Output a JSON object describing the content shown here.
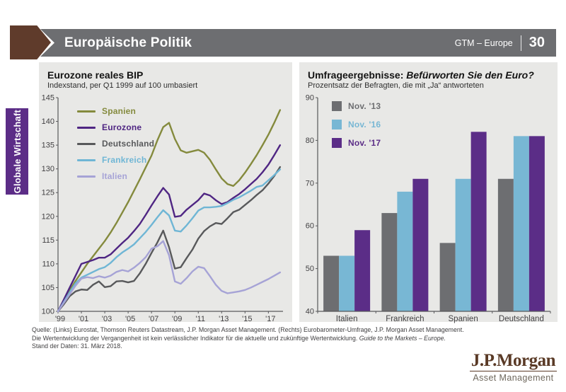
{
  "header": {
    "title": "Europäische Politik",
    "gtm_label": "GTM – Europe",
    "page_number": "30"
  },
  "sidebar": {
    "label": "Globale Wirtschaft",
    "color": "#5c2d87"
  },
  "right_chart": {
    "title_prefix": "Umfrageergebnisse: ",
    "title_italic": "Befürworten Sie den Euro?"
  },
  "chart_data": [
    {
      "type": "line",
      "title": "Eurozone reales BIP",
      "subtitle": "Indexstand, per Q1 1999 auf 100 umbasiert",
      "ylim": [
        100,
        145
      ],
      "ytick_step": 5,
      "xlim": [
        1999,
        2018.25
      ],
      "xticks": [
        1999,
        2001,
        2003,
        2005,
        2007,
        2009,
        2011,
        2013,
        2015,
        2017
      ],
      "xtick_labels": [
        "'99",
        "'01",
        "'03",
        "'05",
        "'07",
        "'09",
        "'11",
        "'13",
        "'15",
        "'17"
      ],
      "grid": false,
      "legend_position": "top-left",
      "x": [
        1999,
        1999.5,
        2000,
        2000.5,
        2001,
        2001.5,
        2002,
        2002.5,
        2003,
        2003.5,
        2004,
        2004.5,
        2005,
        2005.5,
        2006,
        2006.5,
        2007,
        2007.5,
        2008,
        2008.5,
        2009,
        2009.5,
        2010,
        2010.5,
        2011,
        2011.5,
        2012,
        2012.5,
        2013,
        2013.5,
        2014,
        2014.5,
        2015,
        2015.5,
        2016,
        2016.5,
        2017,
        2017.5,
        2018
      ],
      "series": [
        {
          "name": "Spanien",
          "color": "#848a3d",
          "values": [
            100,
            102.2,
            104.4,
            106.4,
            108.2,
            110,
            111.6,
            113.2,
            114.8,
            116.6,
            118.6,
            120.8,
            123,
            125.4,
            127.8,
            130.3,
            132.8,
            136,
            138.8,
            139.7,
            136.3,
            133.9,
            133.4,
            133.7,
            134,
            133.4,
            131.9,
            129.9,
            128,
            126.8,
            126.4,
            127.6,
            129.2,
            131,
            132.9,
            135,
            137.2,
            139.7,
            142.4
          ]
        },
        {
          "name": "Eurozone",
          "color": "#4f2683",
          "values": [
            100,
            102.5,
            105,
            107.5,
            110,
            110.4,
            110.8,
            111.3,
            111.3,
            112,
            113.2,
            114.4,
            115.5,
            116.9,
            118.4,
            120.3,
            122.3,
            124.2,
            126,
            124.6,
            119.9,
            120.1,
            121.4,
            122.4,
            123.4,
            124.8,
            124.4,
            123.4,
            122.6,
            123,
            123.9,
            124.7,
            125.7,
            126.8,
            127.9,
            129.3,
            130.9,
            132.9,
            135
          ]
        },
        {
          "name": "Deutschland",
          "color": "#58595b",
          "values": [
            100,
            101.5,
            103.2,
            104.2,
            104.6,
            104.5,
            105.6,
            106.3,
            105.1,
            105.3,
            106.3,
            106.4,
            106.1,
            106.4,
            108,
            110,
            112.3,
            114.5,
            117,
            113.5,
            109,
            109.3,
            111.2,
            113,
            115.3,
            116.9,
            117.9,
            118.6,
            118.4,
            119.6,
            120.9,
            121.4,
            122.4,
            123.4,
            124.5,
            125.5,
            126.9,
            128.5,
            130.4
          ]
        },
        {
          "name": "Frankreich",
          "color": "#6fb6d5",
          "values": [
            100,
            102,
            104,
            105.9,
            107.1,
            107.7,
            108.3,
            108.9,
            109.3,
            110.2,
            111.4,
            112.4,
            113.2,
            114.1,
            115.4,
            116.7,
            118.2,
            119.8,
            121.3,
            120.2,
            117,
            116.8,
            118.1,
            119.6,
            121.2,
            121.9,
            121.9,
            122,
            122.2,
            122.8,
            123.5,
            124,
            124.7,
            125.4,
            126.2,
            126.5,
            127.6,
            128.7,
            129.9
          ]
        },
        {
          "name": "Italien",
          "color": "#a6a3d6",
          "values": [
            100,
            101.8,
            103.6,
            105.4,
            106.9,
            107.2,
            107,
            107.4,
            107.1,
            107.5,
            108.3,
            108.7,
            108.4,
            109.2,
            110.2,
            111.4,
            113.2,
            113.7,
            114.8,
            111.8,
            106.3,
            105.8,
            107,
            108.4,
            109.4,
            109.1,
            107.4,
            105.6,
            104.3,
            103.8,
            104,
            104.2,
            104.5,
            105,
            105.6,
            106.2,
            106.8,
            107.5,
            108.2
          ]
        }
      ]
    },
    {
      "type": "bar",
      "title": "Umfrageergebnisse: Befürworten Sie den Euro?",
      "subtitle": "Prozentsatz der Befragten, die mit „Ja“ antworteten",
      "ylim": [
        40,
        90
      ],
      "ytick_step": 10,
      "grid": false,
      "legend_position": "top-left",
      "categories": [
        "Italien",
        "Frankreich",
        "Spanien",
        "Deutschland"
      ],
      "series": [
        {
          "name": "Nov. '13",
          "color": "#6d6e71",
          "values": [
            53,
            63,
            56,
            71
          ]
        },
        {
          "name": "Nov. '16",
          "color": "#78b7d4",
          "values": [
            53,
            68,
            71,
            81
          ]
        },
        {
          "name": "Nov. '17",
          "color": "#5b2d87",
          "values": [
            59,
            71,
            82,
            81
          ]
        }
      ]
    }
  ],
  "footer": {
    "source": "Quelle: (Links) Eurostat, Thomson Reuters Datastream, J.P. Morgan Asset Management. (Rechts) Eurobarometer-Umfrage, J.P. Morgan Asset Management.",
    "disclaimer": "Die Wertentwicklung der Vergangenheit ist kein verlässlicher Indikator für die aktuelle und zukünftige Wertentwicklung. ",
    "disclaimer_italic": "Guide to the Markets – Europe.",
    "data_date": "Stand der Daten: 31. März 2018."
  },
  "logo": {
    "name": "J.P.Morgan",
    "subtitle": "Asset Management"
  }
}
